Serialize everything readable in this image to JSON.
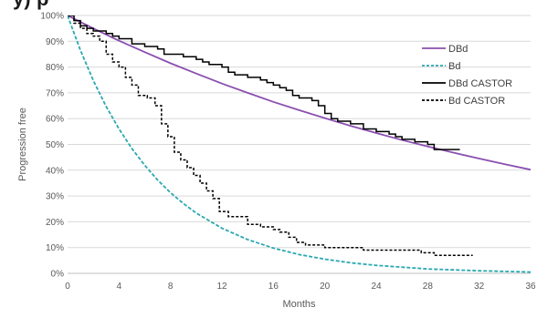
{
  "chart_data": {
    "type": "line",
    "title": "",
    "xlabel": "Months",
    "ylabel": "Progression free",
    "xlim": [
      0,
      36
    ],
    "ylim": [
      0,
      100
    ],
    "x_ticks": [
      0,
      4,
      8,
      12,
      16,
      20,
      24,
      28,
      32,
      36
    ],
    "y_ticks": [
      0,
      10,
      20,
      30,
      40,
      50,
      60,
      70,
      80,
      90,
      100
    ],
    "y_tick_suffix": "%",
    "grid": true,
    "legend_position": "right",
    "series": [
      {
        "name": "DBd",
        "color": "#8b4fb0",
        "style": "solid",
        "step": false,
        "points": [
          [
            0,
            100
          ],
          [
            2,
            95.0
          ],
          [
            4,
            90.2
          ],
          [
            6,
            85.8
          ],
          [
            8,
            81.5
          ],
          [
            10,
            77.5
          ],
          [
            12,
            73.6
          ],
          [
            14,
            70.0
          ],
          [
            16,
            66.5
          ],
          [
            18,
            63.3
          ],
          [
            20,
            60.2
          ],
          [
            22,
            57.2
          ],
          [
            24,
            54.4
          ],
          [
            26,
            51.7
          ],
          [
            28,
            49.2
          ],
          [
            30,
            46.8
          ],
          [
            32,
            44.5
          ],
          [
            34,
            42.3
          ],
          [
            36,
            40.2
          ]
        ]
      },
      {
        "name": "Bd",
        "color": "#2aa8b0",
        "style": "dashed",
        "step": false,
        "points": [
          [
            0,
            100
          ],
          [
            1,
            86.5
          ],
          [
            2,
            74.8
          ],
          [
            3,
            64.7
          ],
          [
            4,
            56.0
          ],
          [
            5,
            48.4
          ],
          [
            6,
            41.9
          ],
          [
            7,
            36.2
          ],
          [
            8,
            31.3
          ],
          [
            9,
            27.1
          ],
          [
            10,
            23.4
          ],
          [
            12,
            17.5
          ],
          [
            14,
            13.1
          ],
          [
            16,
            9.8
          ],
          [
            18,
            7.3
          ],
          [
            20,
            5.5
          ],
          [
            22,
            4.1
          ],
          [
            24,
            3.1
          ],
          [
            28,
            1.7
          ],
          [
            32,
            1.0
          ],
          [
            36,
            0.5
          ]
        ]
      },
      {
        "name": "DBd CASTOR",
        "color": "#000000",
        "style": "solid",
        "step": true,
        "points": [
          [
            0,
            100
          ],
          [
            0.5,
            98
          ],
          [
            1,
            96
          ],
          [
            1.5,
            95
          ],
          [
            2,
            94
          ],
          [
            3,
            93
          ],
          [
            3.5,
            92
          ],
          [
            4,
            91
          ],
          [
            5,
            89
          ],
          [
            6,
            88
          ],
          [
            7,
            87
          ],
          [
            7.5,
            85
          ],
          [
            9,
            84
          ],
          [
            10,
            83
          ],
          [
            10.5,
            82
          ],
          [
            11,
            81
          ],
          [
            12,
            80
          ],
          [
            12.5,
            78
          ],
          [
            13,
            77
          ],
          [
            14,
            76
          ],
          [
            15,
            75
          ],
          [
            15.5,
            74
          ],
          [
            16,
            73
          ],
          [
            16.5,
            72
          ],
          [
            17,
            71
          ],
          [
            17.5,
            69
          ],
          [
            18,
            68
          ],
          [
            19,
            67
          ],
          [
            19.5,
            65
          ],
          [
            20,
            62
          ],
          [
            20.5,
            60
          ],
          [
            21,
            59
          ],
          [
            22,
            58
          ],
          [
            23,
            56
          ],
          [
            24,
            55
          ],
          [
            25,
            54
          ],
          [
            25.5,
            53
          ],
          [
            26,
            52
          ],
          [
            27,
            51
          ],
          [
            28,
            50
          ],
          [
            28.5,
            48
          ],
          [
            30.5,
            48
          ]
        ]
      },
      {
        "name": "Bd CASTOR",
        "color": "#000000",
        "style": "dashed",
        "step": true,
        "points": [
          [
            0,
            100
          ],
          [
            0.5,
            97
          ],
          [
            1,
            95
          ],
          [
            1.5,
            93
          ],
          [
            2,
            92
          ],
          [
            2.5,
            90
          ],
          [
            3,
            85
          ],
          [
            3.5,
            82
          ],
          [
            4,
            80
          ],
          [
            4.5,
            76
          ],
          [
            5,
            73
          ],
          [
            5.5,
            69
          ],
          [
            6.2,
            68
          ],
          [
            6.8,
            65
          ],
          [
            7.3,
            58
          ],
          [
            7.8,
            53
          ],
          [
            8.3,
            47
          ],
          [
            8.8,
            44
          ],
          [
            9.3,
            41
          ],
          [
            9.8,
            38
          ],
          [
            10.3,
            35
          ],
          [
            10.8,
            32
          ],
          [
            11.3,
            29
          ],
          [
            11.8,
            24
          ],
          [
            12.5,
            22
          ],
          [
            14,
            19
          ],
          [
            15,
            18
          ],
          [
            16,
            17
          ],
          [
            16.5,
            16
          ],
          [
            17.2,
            14
          ],
          [
            17.8,
            12
          ],
          [
            18.5,
            11
          ],
          [
            20,
            10
          ],
          [
            23,
            9
          ],
          [
            27.5,
            8
          ],
          [
            28.5,
            7
          ],
          [
            31.5,
            7
          ]
        ]
      }
    ]
  }
}
